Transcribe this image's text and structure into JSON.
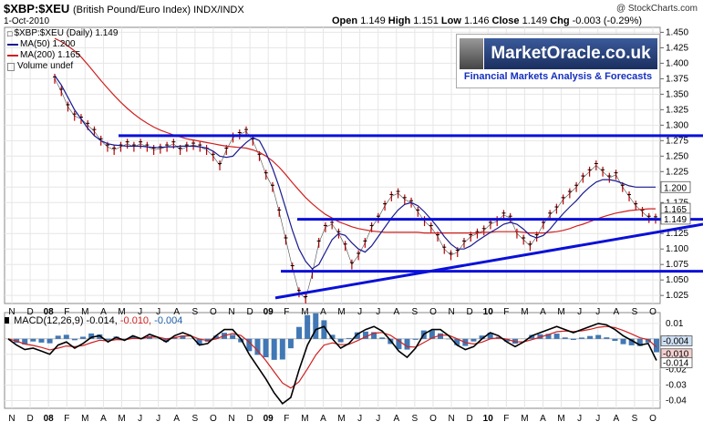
{
  "header": {
    "symbol": "$XBP:$XEU",
    "description": "(British Pound/Euro Index) INDX/INDX",
    "date": "1-Oct-2010",
    "watermark": "@ StockCharts.com",
    "open_label": "Open",
    "open": "1.149",
    "high_label": "High",
    "high": "1.151",
    "low_label": "Low",
    "low": "1.146",
    "close_label": "Close",
    "close": "1.149",
    "chg_label": "Chg",
    "chg": "-0.003 (-0.29%)"
  },
  "legend": {
    "main": "$XBP:$XEU (Daily) 1.149",
    "ma50": "MA(50) 1.200",
    "ma200": "MA(200) 1.165",
    "volume": "Volume undef"
  },
  "logo": {
    "title": "MarketOracle.co.uk",
    "subtitle": "Financial Markets Analysis & Forecasts"
  },
  "macd_legend": {
    "label": "MACD(12,26,9)",
    "v1": "-0.014,",
    "v2": "-0.010,",
    "v3": "-0.004"
  },
  "colors": {
    "price": "#c00000",
    "ma50": "#1a1a90",
    "ma200": "#d02020",
    "trendline": "#0a10d8",
    "macd": "#000000",
    "signal": "#d02020",
    "histogram": "#2060a8"
  },
  "chart_data": {
    "type": "line",
    "time_range": [
      "2007-11",
      "2010-10"
    ],
    "y_ticks": [
      1.025,
      1.05,
      1.075,
      1.1,
      1.125,
      1.15,
      1.175,
      1.2,
      1.225,
      1.25,
      1.275,
      1.3,
      1.325,
      1.35,
      1.375,
      1.4,
      1.425,
      1.45
    ],
    "ylim": [
      1.012,
      1.458
    ],
    "x_ticks": [
      "N",
      "D",
      "08",
      "F",
      "M",
      "A",
      "M",
      "J",
      "J",
      "A",
      "S",
      "O",
      "N",
      "D",
      "09",
      "F",
      "M",
      "A",
      "M",
      "J",
      "J",
      "A",
      "S",
      "O",
      "N",
      "D",
      "10",
      "F",
      "M",
      "A",
      "M",
      "J",
      "J",
      "A",
      "S",
      "O"
    ],
    "x_tick_bold": [
      false,
      false,
      true,
      false,
      false,
      false,
      false,
      false,
      false,
      false,
      false,
      false,
      false,
      false,
      true,
      false,
      false,
      false,
      false,
      false,
      false,
      false,
      false,
      false,
      false,
      false,
      true,
      false,
      false,
      false,
      false,
      false,
      false,
      false,
      false,
      false
    ],
    "right_value_labels": [
      "1.200",
      "1.165",
      "1.149"
    ],
    "series": [
      {
        "name": "$XBP:$XEU (Daily) 1.149",
        "values": [
          1.375,
          1.355,
          1.33,
          1.315,
          1.31,
          1.3,
          1.29,
          1.275,
          1.265,
          1.26,
          1.265,
          1.27,
          1.265,
          1.27,
          1.265,
          1.26,
          1.262,
          1.265,
          1.27,
          1.26,
          1.265,
          1.268,
          1.265,
          1.26,
          1.25,
          1.235,
          1.26,
          1.28,
          1.285,
          1.29,
          1.275,
          1.25,
          1.22,
          1.2,
          1.16,
          1.115,
          1.07,
          1.03,
          1.02,
          1.06,
          1.11,
          1.135,
          1.14,
          1.125,
          1.105,
          1.075,
          1.09,
          1.11,
          1.135,
          1.15,
          1.17,
          1.185,
          1.19,
          1.18,
          1.175,
          1.16,
          1.145,
          1.135,
          1.12,
          1.1,
          1.09,
          1.095,
          1.11,
          1.12,
          1.125,
          1.13,
          1.14,
          1.145,
          1.155,
          1.15,
          1.125,
          1.115,
          1.105,
          1.12,
          1.14,
          1.155,
          1.165,
          1.18,
          1.19,
          1.2,
          1.215,
          1.225,
          1.235,
          1.225,
          1.215,
          1.22,
          1.2,
          1.185,
          1.17,
          1.16,
          1.15,
          1.149
        ]
      },
      {
        "name": "MA(50) 1.200",
        "values": [
          1.38,
          1.365,
          1.345,
          1.325,
          1.31,
          1.295,
          1.283,
          1.275,
          1.27,
          1.268,
          1.267,
          1.266,
          1.266,
          1.266,
          1.265,
          1.264,
          1.264,
          1.265,
          1.265,
          1.266,
          1.266,
          1.266,
          1.265,
          1.263,
          1.258,
          1.25,
          1.248,
          1.25,
          1.262,
          1.272,
          1.28,
          1.275,
          1.255,
          1.23,
          1.2,
          1.165,
          1.13,
          1.1,
          1.08,
          1.068,
          1.075,
          1.095,
          1.115,
          1.125,
          1.122,
          1.11,
          1.1,
          1.095,
          1.105,
          1.12,
          1.135,
          1.15,
          1.163,
          1.172,
          1.175,
          1.17,
          1.16,
          1.148,
          1.135,
          1.12,
          1.108,
          1.1,
          1.1,
          1.105,
          1.113,
          1.12,
          1.127,
          1.133,
          1.14,
          1.143,
          1.14,
          1.132,
          1.122,
          1.118,
          1.122,
          1.132,
          1.145,
          1.157,
          1.168,
          1.178,
          1.19,
          1.2,
          1.208,
          1.212,
          1.212,
          1.21,
          1.206,
          1.202,
          1.2,
          1.2,
          1.2,
          1.2
        ]
      },
      {
        "name": "MA(200) 1.165",
        "values": [
          1.44,
          1.435,
          1.428,
          1.42,
          1.41,
          1.398,
          1.385,
          1.372,
          1.36,
          1.348,
          1.337,
          1.327,
          1.318,
          1.31,
          1.303,
          1.297,
          1.292,
          1.288,
          1.284,
          1.281,
          1.278,
          1.276,
          1.274,
          1.272,
          1.27,
          1.268,
          1.266,
          1.265,
          1.264,
          1.263,
          1.26,
          1.256,
          1.25,
          1.242,
          1.232,
          1.22,
          1.207,
          1.195,
          1.183,
          1.173,
          1.164,
          1.156,
          1.15,
          1.144,
          1.14,
          1.136,
          1.133,
          1.131,
          1.129,
          1.128,
          1.127,
          1.127,
          1.127,
          1.127,
          1.127,
          1.127,
          1.126,
          1.126,
          1.126,
          1.126,
          1.126,
          1.126,
          1.126,
          1.126,
          1.126,
          1.127,
          1.127,
          1.128,
          1.128,
          1.128,
          1.128,
          1.127,
          1.126,
          1.126,
          1.126,
          1.127,
          1.128,
          1.13,
          1.133,
          1.137,
          1.14,
          1.144,
          1.148,
          1.152,
          1.155,
          1.158,
          1.16,
          1.162,
          1.163,
          1.164,
          1.165,
          1.165
        ]
      }
    ],
    "trendlines": [
      {
        "from": [
          0.0,
          1.283
        ],
        "to": [
          1.0,
          1.283
        ]
      },
      {
        "from": [
          0.0,
          1.148
        ],
        "to": [
          1.0,
          1.148
        ]
      },
      {
        "from": [
          0.0,
          1.064
        ],
        "to": [
          1.0,
          1.064
        ]
      },
      {
        "from": [
          0.0,
          1.021
        ],
        "to": [
          1.0,
          1.14
        ]
      }
    ],
    "macd": {
      "y_ticks": [
        0.01,
        0.0,
        -0.01,
        -0.02,
        -0.03,
        -0.04
      ],
      "y_tick_labels": [
        "0.01",
        "0.000",
        "-0.01",
        "-0.02",
        "-0.03",
        "-0.04"
      ],
      "ylim": [
        -0.045,
        0.017
      ],
      "right_value_labels": [
        "-0.004",
        "-0.010",
        "-0.014"
      ],
      "macd": [
        0.0,
        -0.004,
        -0.007,
        -0.006,
        -0.008,
        -0.01,
        -0.004,
        -0.002,
        -0.006,
        -0.003,
        0.001,
        0.002,
        -0.002,
        0.001,
        -0.001,
        0.002,
        0.0,
        0.003,
        0.001,
        -0.002,
        0.002,
        0.004,
        0.002,
        -0.004,
        -0.003,
        0.002,
        0.006,
        0.006,
        0.0,
        -0.01,
        -0.018,
        -0.026,
        -0.035,
        -0.042,
        -0.038,
        -0.02,
        -0.004,
        0.006,
        0.008,
        0.0,
        -0.006,
        -0.003,
        0.003,
        0.006,
        0.008,
        0.005,
        -0.001,
        -0.008,
        -0.012,
        -0.006,
        0.003,
        0.006,
        0.006,
        0.002,
        -0.004,
        -0.007,
        -0.005,
        0.0,
        0.004,
        0.002,
        -0.002,
        -0.005,
        -0.002,
        0.002,
        0.004,
        0.006,
        0.008,
        0.006,
        0.004,
        0.006,
        0.008,
        0.01,
        0.009,
        0.006,
        0.002,
        -0.001,
        -0.004,
        -0.003,
        -0.014
      ]
    }
  }
}
